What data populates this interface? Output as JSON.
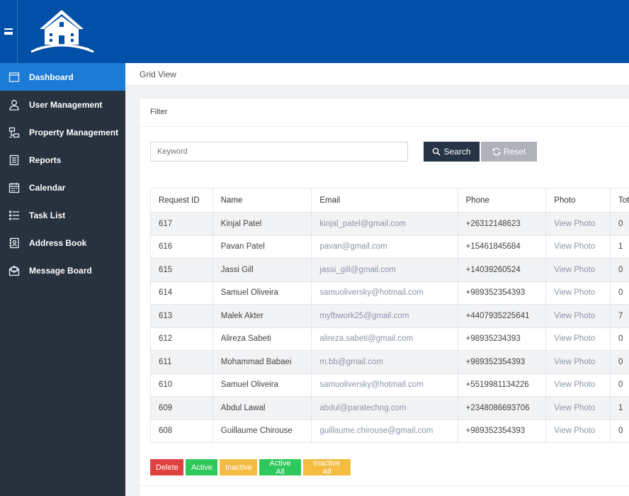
{
  "sidebar": {
    "items": [
      {
        "label": "Dashboard",
        "icon": "window-icon",
        "active": true
      },
      {
        "label": "User Management",
        "icon": "user-icon"
      },
      {
        "label": "Property Management",
        "icon": "sitemap-icon"
      },
      {
        "label": "Reports",
        "icon": "report-icon"
      },
      {
        "label": "Calendar",
        "icon": "calendar-icon"
      },
      {
        "label": "Task List",
        "icon": "list-icon"
      },
      {
        "label": "Address Book",
        "icon": "address-book-icon"
      },
      {
        "label": "Message Board",
        "icon": "envelope-icon"
      }
    ]
  },
  "breadcrumb": {
    "current": "Grid View"
  },
  "filter": {
    "title": "Filter",
    "keyword_placeholder": "Keyword",
    "search_label": "Search",
    "reset_label": "Reset"
  },
  "table": {
    "headers": [
      "Request ID",
      "Name",
      "Email",
      "Phone",
      "Photo",
      "Tot"
    ],
    "rows": [
      [
        "617",
        "Kinjal Patel",
        "kinjal_patel@gmail.com",
        "+26312148623",
        "View Photo",
        "0"
      ],
      [
        "616",
        "Pavan Patel",
        "pavan@gmail.com",
        "+15461845684",
        "View Photo",
        "1"
      ],
      [
        "615",
        "Jassi Gill",
        "jassi_gill@gmail.com",
        "+14039260524",
        "View Photo",
        "0"
      ],
      [
        "614",
        "Samuel Oliveira",
        "samuoliversky@hotmail.com",
        "+989352354393",
        "View Photo",
        "0"
      ],
      [
        "613",
        "Malek Akter",
        "myfbwork25@gmail.com",
        "+4407935225641",
        "View Photo",
        "7"
      ],
      [
        "612",
        "Alireza Sabeti",
        "alireza.sabeti@gmail.com",
        "+98935234393",
        "View Photo",
        "0"
      ],
      [
        "611",
        "Mohammad Babaei",
        "m.bb@gmail.com",
        "+989352354393",
        "View Photo",
        "0"
      ],
      [
        "610",
        "Samuel Oliveira",
        "samuoliversky@hotmail.com",
        "+5519981134226",
        "View Photo",
        "0"
      ],
      [
        "609",
        "Abdul Lawal",
        "abdul@paratechng.com",
        "+2348086693706",
        "View Photo",
        "1"
      ],
      [
        "608",
        "Guillaume Chirouse",
        "guillaume.chirouse@gmail.com",
        "+989352354393",
        "View Photo",
        "0"
      ]
    ]
  },
  "actions": {
    "delete": "Delete",
    "active": "Active",
    "inactive": "Inactive",
    "active_all": "Active All",
    "inactive_all": "Inactive All"
  },
  "colors": {
    "topbar": "#0150a8",
    "sidebar": "#28323f",
    "sidebar_active": "#1c7bd6",
    "search_button": "#263445",
    "reset_button": "#adb3b9",
    "delete": "#e0433f",
    "active": "#2fc85a",
    "inactive": "#f4bc41"
  }
}
